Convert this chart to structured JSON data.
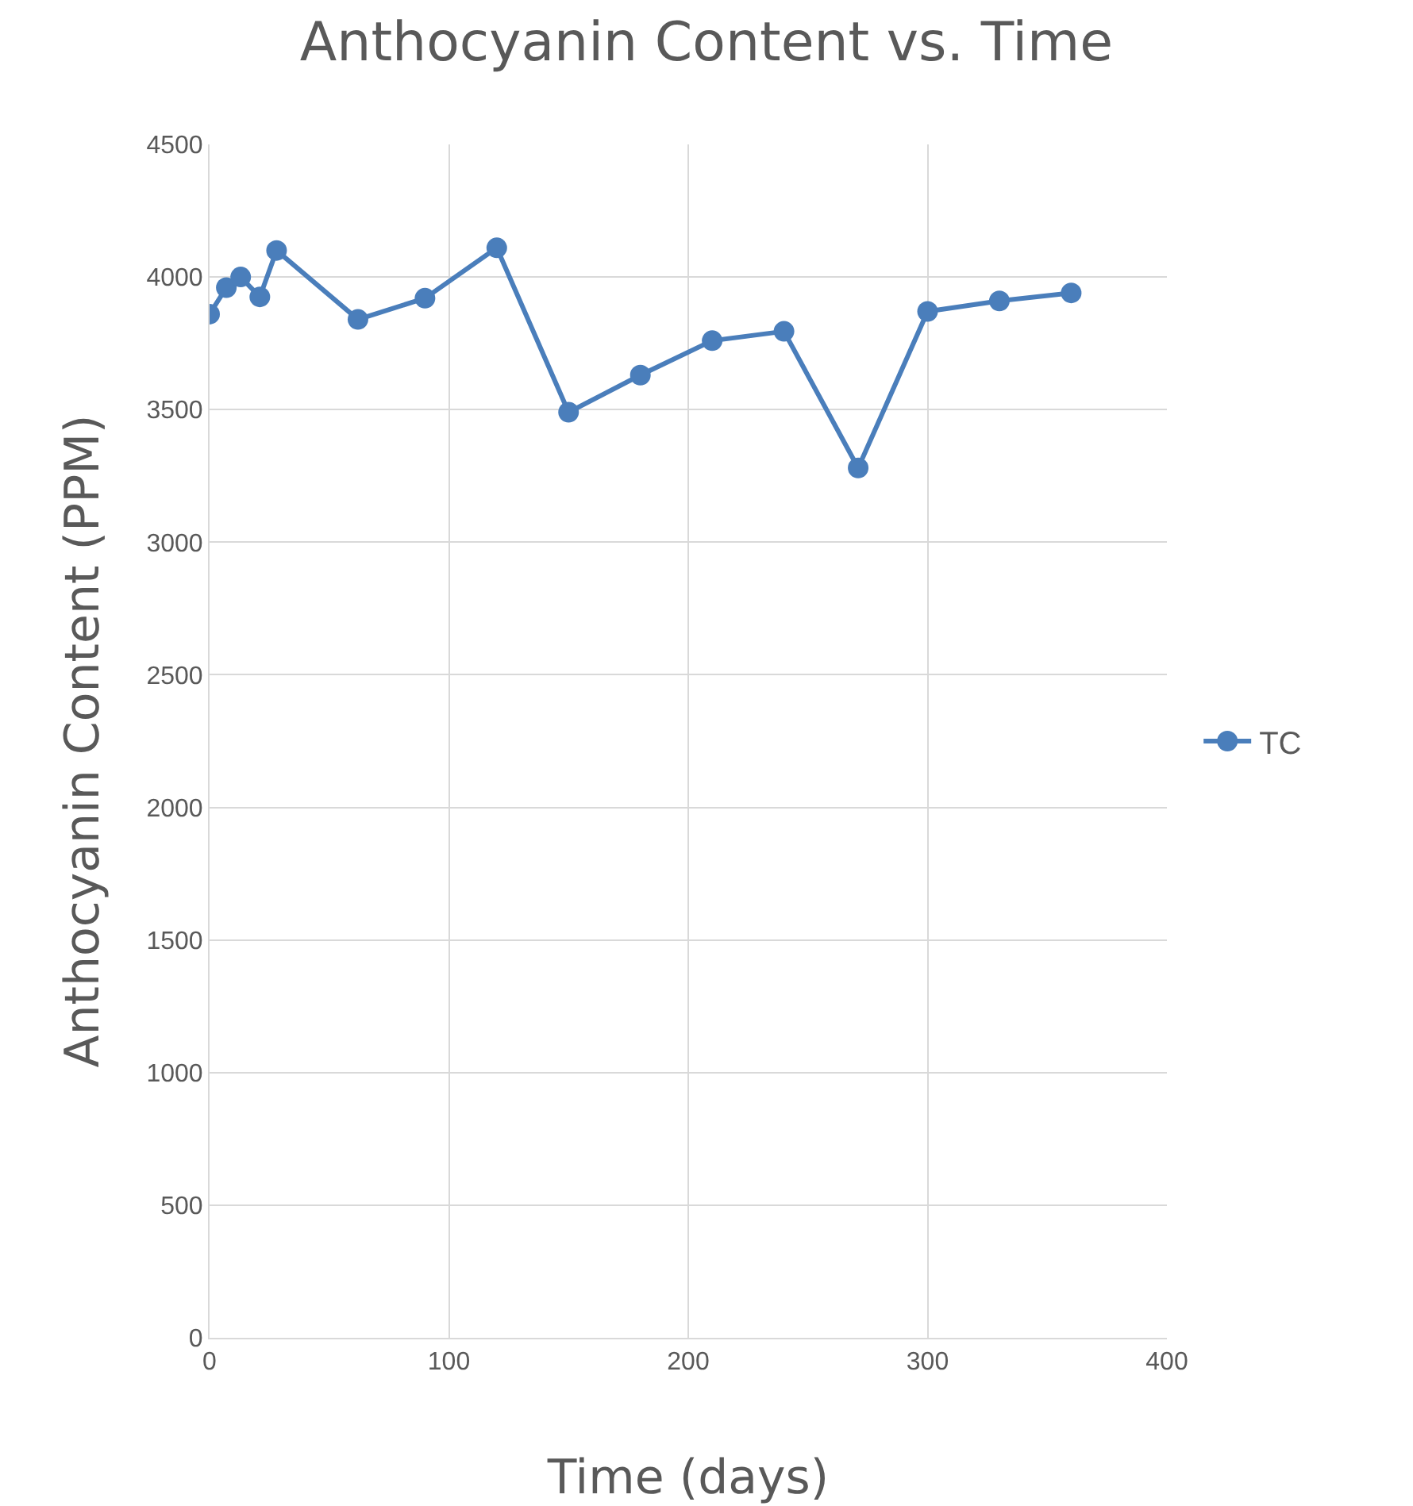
{
  "chart_data": {
    "type": "line",
    "title": "Anthocyanin Content vs. Time",
    "xlabel": "Time (days)",
    "ylabel": "Anthocyanin Content (PPM)",
    "x": [
      0,
      7,
      13,
      21,
      28,
      62,
      90,
      120,
      150,
      180,
      210,
      240,
      271,
      300,
      330,
      360
    ],
    "series": [
      {
        "name": "TC",
        "color": "#4a7ebb",
        "values": [
          3860,
          3960,
          4000,
          3925,
          4100,
          3840,
          3920,
          4110,
          3490,
          3630,
          3760,
          3795,
          3280,
          3870,
          3910,
          3940
        ]
      }
    ],
    "xlim": [
      0,
      400
    ],
    "xticks": [
      0,
      100,
      200,
      300,
      400
    ],
    "ylim": [
      0,
      4500
    ],
    "yticks": [
      0,
      500,
      1000,
      1500,
      2000,
      2500,
      3000,
      3500,
      4000,
      4500
    ],
    "grid": true,
    "legend": "right",
    "marker": "circle",
    "line_style": "solid"
  }
}
